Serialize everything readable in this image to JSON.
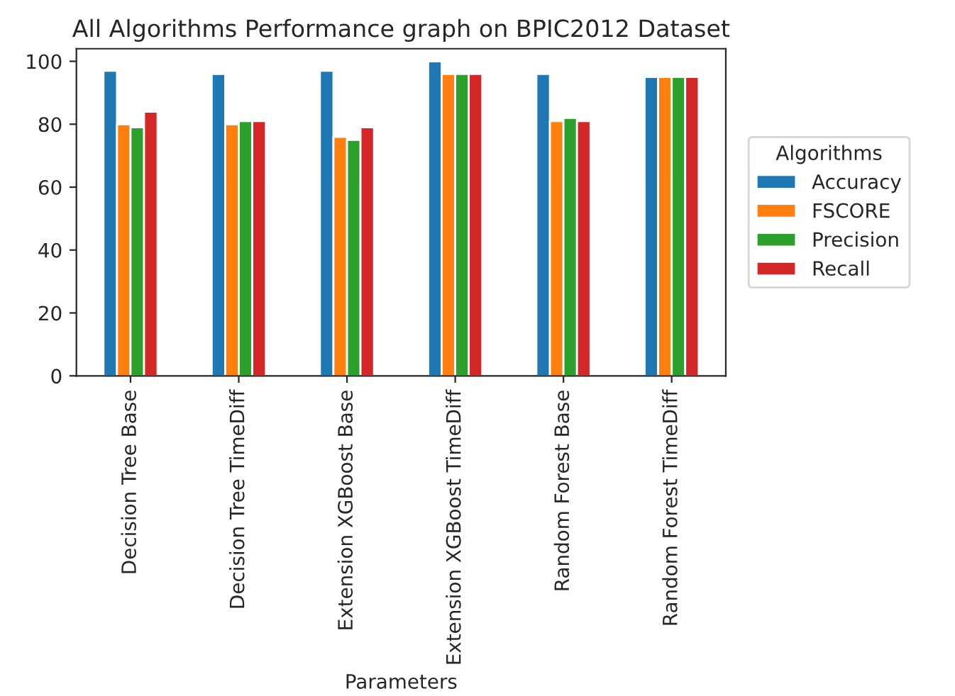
{
  "chart_data": {
    "type": "bar",
    "title": "All Algorithms Performance graph on BPIC2012 Dataset",
    "xlabel": "Parameters",
    "legend_title": "Algorithms",
    "categories": [
      "Decision Tree Base",
      "Decision Tree TimeDiff",
      "Extension XGBoost Base",
      "Extension XGBoost TimeDiff",
      "Random Forest Base",
      "Random Forest TimeDiff"
    ],
    "series": [
      {
        "name": "Accuracy",
        "color": "#1f77b4",
        "values": [
          97,
          96,
          97,
          100,
          96,
          95
        ]
      },
      {
        "name": "FSCORE",
        "color": "#ff7f0e",
        "values": [
          80,
          80,
          76,
          96,
          81,
          95
        ]
      },
      {
        "name": "Precision",
        "color": "#2ca02c",
        "values": [
          79,
          81,
          75,
          96,
          82,
          95
        ]
      },
      {
        "name": "Recall",
        "color": "#d62728",
        "values": [
          84,
          81,
          79,
          96,
          81,
          95
        ]
      }
    ],
    "ylim": [
      0,
      104
    ],
    "yticks": [
      0,
      20,
      40,
      60,
      80,
      100
    ],
    "grid": false,
    "legend": "right"
  }
}
